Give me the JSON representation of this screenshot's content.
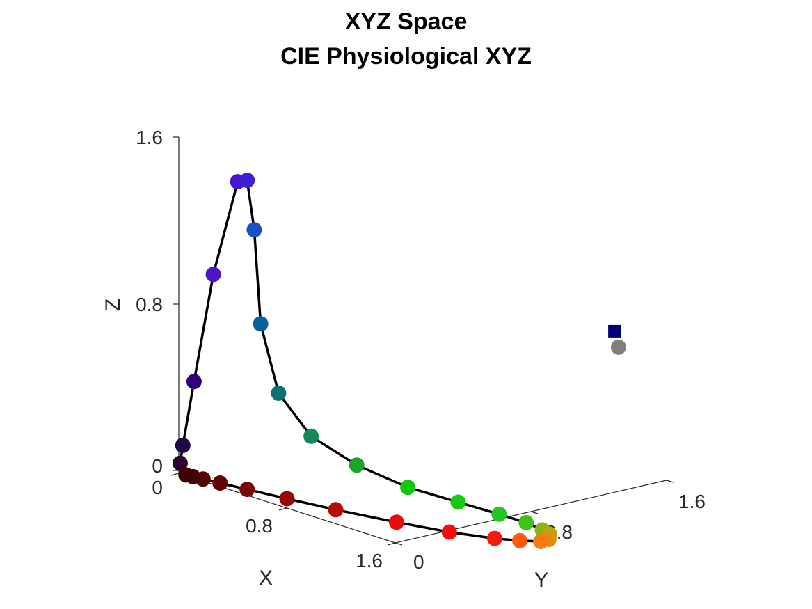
{
  "chart_data": {
    "type": "scatter3d",
    "title": "XYZ Space",
    "subtitle": "CIE Physiological XYZ",
    "xlabel": "X",
    "ylabel": "Y",
    "zlabel": "Z",
    "xlim": [
      0,
      1.6
    ],
    "ylim": [
      0,
      1.6
    ],
    "zlim": [
      0,
      1.6
    ],
    "x_ticks": [
      "0",
      "0.8",
      "1.6"
    ],
    "y_ticks": [
      "0",
      "0.8",
      "1.6"
    ],
    "z_ticks": [
      "0",
      "0.8",
      "1.6"
    ],
    "grid": false,
    "legend": "none",
    "locus_line_color": "#000000",
    "points": [
      {
        "x": 0.01,
        "y": 0.0,
        "z": 0.05,
        "color": "#2a0033"
      },
      {
        "x": 0.03,
        "y": 0.0,
        "z": 0.14,
        "color": "#1b0a45"
      },
      {
        "x": 0.09,
        "y": 0.01,
        "z": 0.46,
        "color": "#300080"
      },
      {
        "x": 0.21,
        "y": 0.02,
        "z": 1.0,
        "color": "#4d13c4"
      },
      {
        "x": 0.3,
        "y": 0.06,
        "z": 1.47,
        "color": "#4a12d4"
      },
      {
        "x": 0.28,
        "y": 0.1,
        "z": 1.48,
        "color": "#3a20d8"
      },
      {
        "x": 0.22,
        "y": 0.15,
        "z": 1.24,
        "color": "#1a4fc8"
      },
      {
        "x": 0.11,
        "y": 0.22,
        "z": 0.78,
        "color": "#06629e"
      },
      {
        "x": 0.04,
        "y": 0.31,
        "z": 0.45,
        "color": "#0b7070"
      },
      {
        "x": 0.01,
        "y": 0.43,
        "z": 0.26,
        "color": "#138a5a"
      },
      {
        "x": 0.01,
        "y": 0.58,
        "z": 0.15,
        "color": "#1aa52a"
      },
      {
        "x": 0.05,
        "y": 0.73,
        "z": 0.08,
        "color": "#13c413"
      },
      {
        "x": 0.13,
        "y": 0.86,
        "z": 0.05,
        "color": "#16c916"
      },
      {
        "x": 0.23,
        "y": 0.95,
        "z": 0.03,
        "color": "#24c624"
      },
      {
        "x": 0.34,
        "y": 0.99,
        "z": 0.02,
        "color": "#3fc414"
      },
      {
        "x": 0.46,
        "y": 0.99,
        "z": 0.01,
        "color": "#8cb414"
      },
      {
        "x": 0.58,
        "y": 0.96,
        "z": 0.01,
        "color": "#b4a814"
      },
      {
        "x": 0.71,
        "y": 0.9,
        "z": 0.0,
        "color": "#e38c10"
      },
      {
        "x": 0.83,
        "y": 0.82,
        "z": 0.0,
        "color": "#f77a12"
      },
      {
        "x": 0.9,
        "y": 0.72,
        "z": 0.0,
        "color": "#ff5a0a"
      },
      {
        "x": 0.94,
        "y": 0.62,
        "z": 0.0,
        "color": "#f31a12"
      },
      {
        "x": 0.92,
        "y": 0.48,
        "z": 0.0,
        "color": "#f20d0d"
      },
      {
        "x": 0.8,
        "y": 0.36,
        "z": 0.0,
        "color": "#e60d0d"
      },
      {
        "x": 0.62,
        "y": 0.24,
        "z": 0.0,
        "color": "#b40a0a"
      },
      {
        "x": 0.44,
        "y": 0.16,
        "z": 0.0,
        "color": "#960808"
      },
      {
        "x": 0.28,
        "y": 0.1,
        "z": 0.0,
        "color": "#7a0505"
      },
      {
        "x": 0.17,
        "y": 0.06,
        "z": 0.0,
        "color": "#630404"
      },
      {
        "x": 0.1,
        "y": 0.035,
        "z": 0.0,
        "color": "#530303"
      },
      {
        "x": 0.06,
        "y": 0.02,
        "z": 0.0,
        "color": "#480202"
      },
      {
        "x": 0.03,
        "y": 0.01,
        "z": 0.0,
        "color": "#3c0202"
      }
    ],
    "white_points": [
      {
        "x": 0.97,
        "y": 1.0,
        "z": 1.07,
        "marker": "square",
        "color": "#00007a"
      },
      {
        "x": 1.0,
        "y": 1.0,
        "z": 1.0,
        "marker": "circle",
        "color": "#808080"
      }
    ]
  }
}
